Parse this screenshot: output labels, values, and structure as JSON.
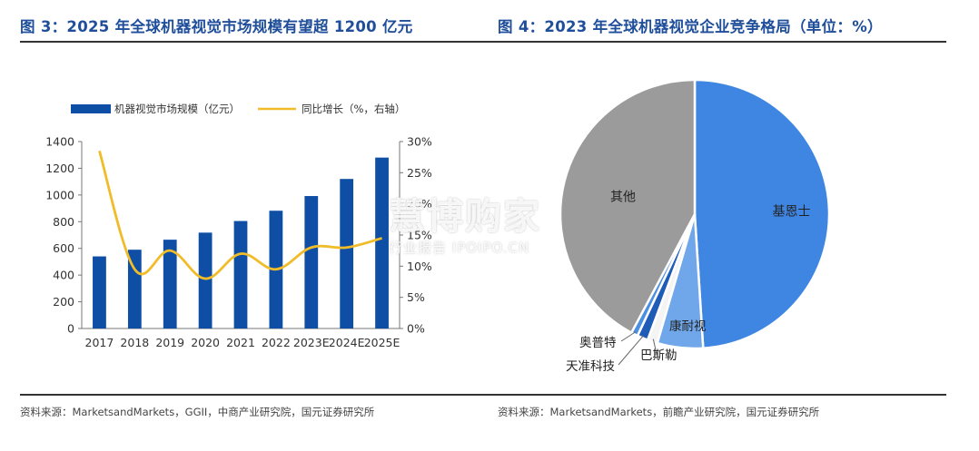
{
  "titles": {
    "left": "图 3：2025 年全球机器视觉市场规模有望超 1200 亿元",
    "right": "图 4：2023 年全球机器视觉企业竞争格局（单位：%）"
  },
  "sources": {
    "left": "资料来源：MarketsandMarkets，GGII，中商产业研究院，国元证券研究所",
    "right": "资料来源：MarketsandMarkets，前瞻产业研究院，国元证券研究所"
  },
  "watermark": {
    "main": "慧博购家",
    "sub": "行业报告 IPOIPO.CN"
  },
  "chart_data": [
    {
      "type": "bar",
      "categories": [
        "2017",
        "2018",
        "2019",
        "2020",
        "2021",
        "2022",
        "2023E",
        "2024E",
        "2025E"
      ],
      "series": [
        {
          "name": "机器视觉市场规模（亿元）",
          "type": "bar",
          "axis": "left",
          "color": "#0e4ea5",
          "values": [
            540,
            590,
            665,
            718,
            805,
            882,
            992,
            1120,
            1280
          ]
        },
        {
          "name": "同比增长（%，右轴）",
          "type": "line",
          "axis": "right",
          "color": "#f0bc2a",
          "values": [
            28.5,
            9.5,
            12.5,
            8.0,
            12.0,
            9.5,
            13.0,
            13.0,
            14.5
          ]
        }
      ],
      "y_left": {
        "min": 0,
        "max": 1400,
        "ticks": [
          0,
          200,
          400,
          600,
          800,
          1000,
          1200,
          1400
        ],
        "tick_labels": [
          "0",
          "200",
          "400",
          "600",
          "800",
          "1000",
          "1200",
          "1400"
        ]
      },
      "y_right": {
        "min": 0,
        "max": 30,
        "ticks": [
          0,
          5,
          10,
          15,
          20,
          25,
          30
        ],
        "tick_labels": [
          "0%",
          "5%",
          "10%",
          "15%",
          "20%",
          "25%",
          "30%"
        ]
      },
      "legend_position": "top",
      "grid": false
    },
    {
      "type": "pie",
      "slices": [
        {
          "label": "基恩士",
          "value": 49.0,
          "color": "#3f86e2"
        },
        {
          "label": "康耐视",
          "value": 5.5,
          "color": "#6fa7ea"
        },
        {
          "label": "巴斯勒",
          "value": 1.2,
          "color": "#f4f4f4"
        },
        {
          "label": "天准科技",
          "value": 1.3,
          "color": "#1e5cb8"
        },
        {
          "label": "奥普特",
          "value": 0.8,
          "color": "#4b8fe3"
        },
        {
          "label": "其他",
          "value": 42.2,
          "color": "#9b9b9b"
        }
      ]
    }
  ]
}
